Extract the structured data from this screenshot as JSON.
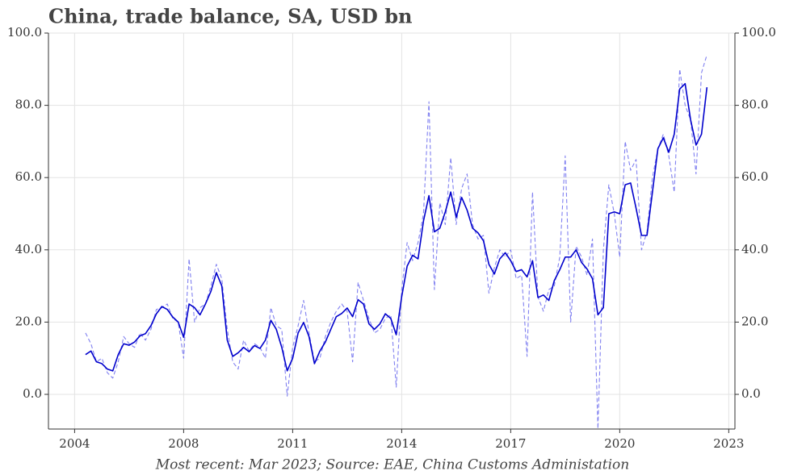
{
  "chart_data": {
    "type": "line",
    "title": "China, trade balance, SA, USD bn",
    "footnote": "Most recent: Mar 2023; Source: EAE, China Customs Administation",
    "x": [
      2006.3,
      2006.45,
      2006.6,
      2006.75,
      2006.9,
      2007.05,
      2007.2,
      2007.35,
      2007.5,
      2007.65,
      2007.8,
      2007.95,
      2008.1,
      2008.25,
      2008.4,
      2008.55,
      2008.7,
      2008.85,
      2009.0,
      2009.15,
      2009.3,
      2009.45,
      2009.6,
      2009.75,
      2009.9,
      2010.05,
      2010.2,
      2010.35,
      2010.5,
      2010.65,
      2010.8,
      2010.95,
      2011.1,
      2011.25,
      2011.4,
      2011.55,
      2011.7,
      2011.85,
      2012.0,
      2012.15,
      2012.3,
      2012.45,
      2012.6,
      2012.75,
      2012.9,
      2013.05,
      2013.2,
      2013.35,
      2013.5,
      2013.65,
      2013.8,
      2013.95,
      2014.1,
      2014.25,
      2014.4,
      2014.55,
      2014.7,
      2014.85,
      2015.0,
      2015.15,
      2015.3,
      2015.45,
      2015.6,
      2015.75,
      2015.9,
      2016.05,
      2016.2,
      2016.35,
      2016.5,
      2016.65,
      2016.8,
      2016.95,
      2017.1,
      2017.25,
      2017.4,
      2017.55,
      2017.7,
      2017.85,
      2018.0,
      2018.15,
      2018.3,
      2018.45,
      2018.6,
      2018.75,
      2018.9,
      2019.05,
      2019.2,
      2019.35,
      2019.5,
      2019.65,
      2019.8,
      2019.95,
      2020.1,
      2020.25,
      2020.4,
      2020.55,
      2020.7,
      2020.85,
      2021.0,
      2021.15,
      2021.3,
      2021.45,
      2021.6,
      2021.75,
      2021.9,
      2022.05,
      2022.2,
      2022.35,
      2022.5,
      2022.65,
      2022.8,
      2022.95,
      2023.1,
      2023.25,
      2023.4
    ],
    "series": [
      {
        "color": "#8080f0",
        "dashed": true,
        "values": [
          17,
          14,
          9,
          10,
          6,
          4.5,
          9,
          16,
          14,
          13,
          17,
          15,
          18,
          23.5,
          24,
          25,
          21,
          20,
          10,
          37.5,
          20,
          24,
          25,
          30,
          36,
          32,
          18,
          9,
          7,
          15,
          12,
          14,
          13,
          10,
          24,
          19,
          18,
          -0.5,
          13,
          19,
          26,
          17,
          9,
          10,
          16,
          20,
          23,
          25,
          23,
          9,
          31,
          26,
          21,
          17,
          18,
          21,
          22,
          2,
          29,
          42,
          37,
          42,
          50,
          81,
          29,
          53,
          47,
          65.5,
          47,
          57,
          61,
          47,
          43,
          44,
          28,
          35,
          40,
          38,
          40,
          32,
          33,
          10.5,
          56,
          27,
          23,
          29,
          30,
          38,
          66,
          20,
          41,
          38,
          33,
          43,
          -9.5,
          40,
          58,
          50,
          38,
          70,
          62,
          65,
          40,
          45,
          60,
          68,
          72,
          66,
          56,
          90,
          80,
          76,
          61,
          89,
          94
        ]
      },
      {
        "color": "#0000cc",
        "dashed": false,
        "values": [
          11,
          12,
          9,
          8.5,
          7,
          6.5,
          11,
          14,
          13.6,
          14.5,
          16.2,
          16.8,
          19,
          22.3,
          24.3,
          23.5,
          21.4,
          20,
          15.8,
          25,
          24,
          22,
          25,
          28.5,
          33.7,
          30,
          15,
          10.5,
          11.5,
          13,
          11.8,
          13.5,
          12.7,
          15,
          20.5,
          18,
          13,
          6.5,
          10,
          17,
          19.9,
          16,
          8.5,
          12,
          14.5,
          18,
          21.5,
          22.4,
          23.9,
          21.5,
          26.2,
          25,
          19.5,
          18,
          19.5,
          22.3,
          21,
          16.5,
          27,
          35.5,
          38.5,
          37.5,
          48,
          55,
          45,
          46,
          50.5,
          56,
          49,
          54.5,
          51,
          46,
          44.7,
          42.5,
          36,
          33.3,
          37.5,
          39.2,
          37,
          34,
          34.5,
          32.5,
          37,
          26.8,
          27.5,
          26,
          31.5,
          34.5,
          38,
          38,
          40,
          36.5,
          34.7,
          32,
          22,
          24,
          50,
          50.5,
          50,
          58,
          58.5,
          51.5,
          44,
          44,
          56,
          68,
          71,
          67,
          72,
          84.5,
          86,
          76,
          69,
          72,
          85
        ]
      }
    ],
    "xlim": [
      2005.28,
      2024.17
    ],
    "xticks": [
      {
        "value": 2006,
        "label": "2004"
      },
      {
        "value": 2009,
        "label": "2008"
      },
      {
        "value": 2012,
        "label": "2011"
      },
      {
        "value": 2015,
        "label": "2014"
      },
      {
        "value": 2018,
        "label": "2017"
      },
      {
        "value": 2021,
        "label": "2020"
      },
      {
        "value": 2024,
        "label": "2023"
      }
    ],
    "ylim": [
      -9.6,
      100
    ],
    "yticks": [
      {
        "value": 0,
        "label": "0.0"
      },
      {
        "value": 20,
        "label": "20.0"
      },
      {
        "value": 40,
        "label": "40.0"
      },
      {
        "value": 60,
        "label": "60.0"
      },
      {
        "value": 80,
        "label": "80.0"
      },
      {
        "value": 100,
        "label": "100.0"
      }
    ],
    "grid": true
  }
}
